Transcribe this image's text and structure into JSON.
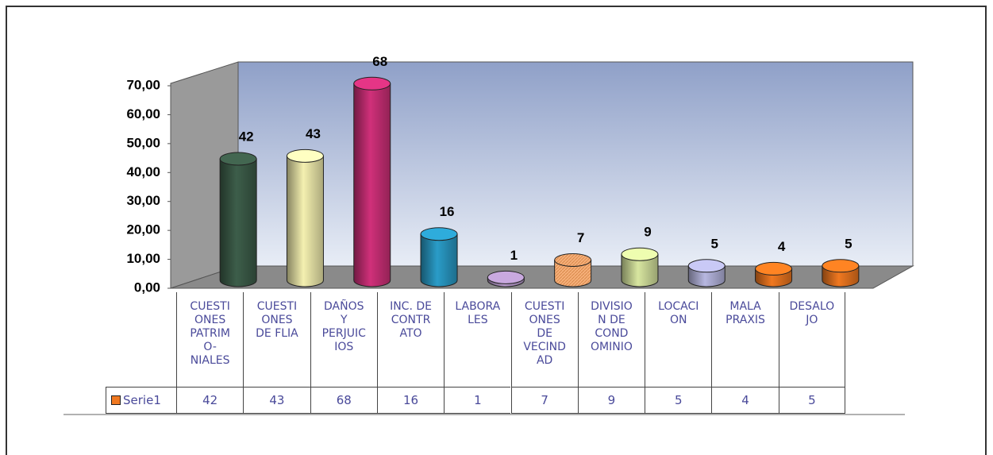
{
  "chart_data": {
    "type": "bar",
    "categories": [
      "CUESTI\nONES\nPATRIM\nO-\nNIALES",
      "CUESTI\nONES\nDE FLIA",
      "DAÑOS\nY\nPERJUIC\nIOS",
      "INC. DE\nCONTR\nATO",
      "LABORA\nLES",
      "CUESTI\nONES\nDE\nVECIND\nAD",
      "DIVISIO\nN DE\nCOND\nOMINIO",
      "LOCACI\nON",
      "MALA\nPRAXIS",
      "DESALO\nJO"
    ],
    "series": [
      {
        "name": "Serie1",
        "color": "#f07820",
        "values": [
          42,
          43,
          68,
          16,
          1,
          7,
          9,
          5,
          4,
          5
        ],
        "bar_colors": [
          "#3d5e4a",
          "#f4f0b0",
          "#d0307a",
          "#2a9cc8",
          "#b79acb",
          "#f6b07a",
          "#d8e6a0",
          "#b7b7e0",
          "#f07820",
          "#f07820"
        ]
      }
    ],
    "ylim": [
      0,
      70
    ],
    "yticks": [
      {
        "value": 0,
        "label": "0,00"
      },
      {
        "value": 10,
        "label": "10,00"
      },
      {
        "value": 20,
        "label": "20,00"
      },
      {
        "value": 30,
        "label": "30,00"
      },
      {
        "value": 40,
        "label": "40,00"
      },
      {
        "value": 50,
        "label": "50,00"
      },
      {
        "value": 60,
        "label": "60,00"
      },
      {
        "value": 70,
        "label": "70,00"
      }
    ],
    "grid": false
  }
}
